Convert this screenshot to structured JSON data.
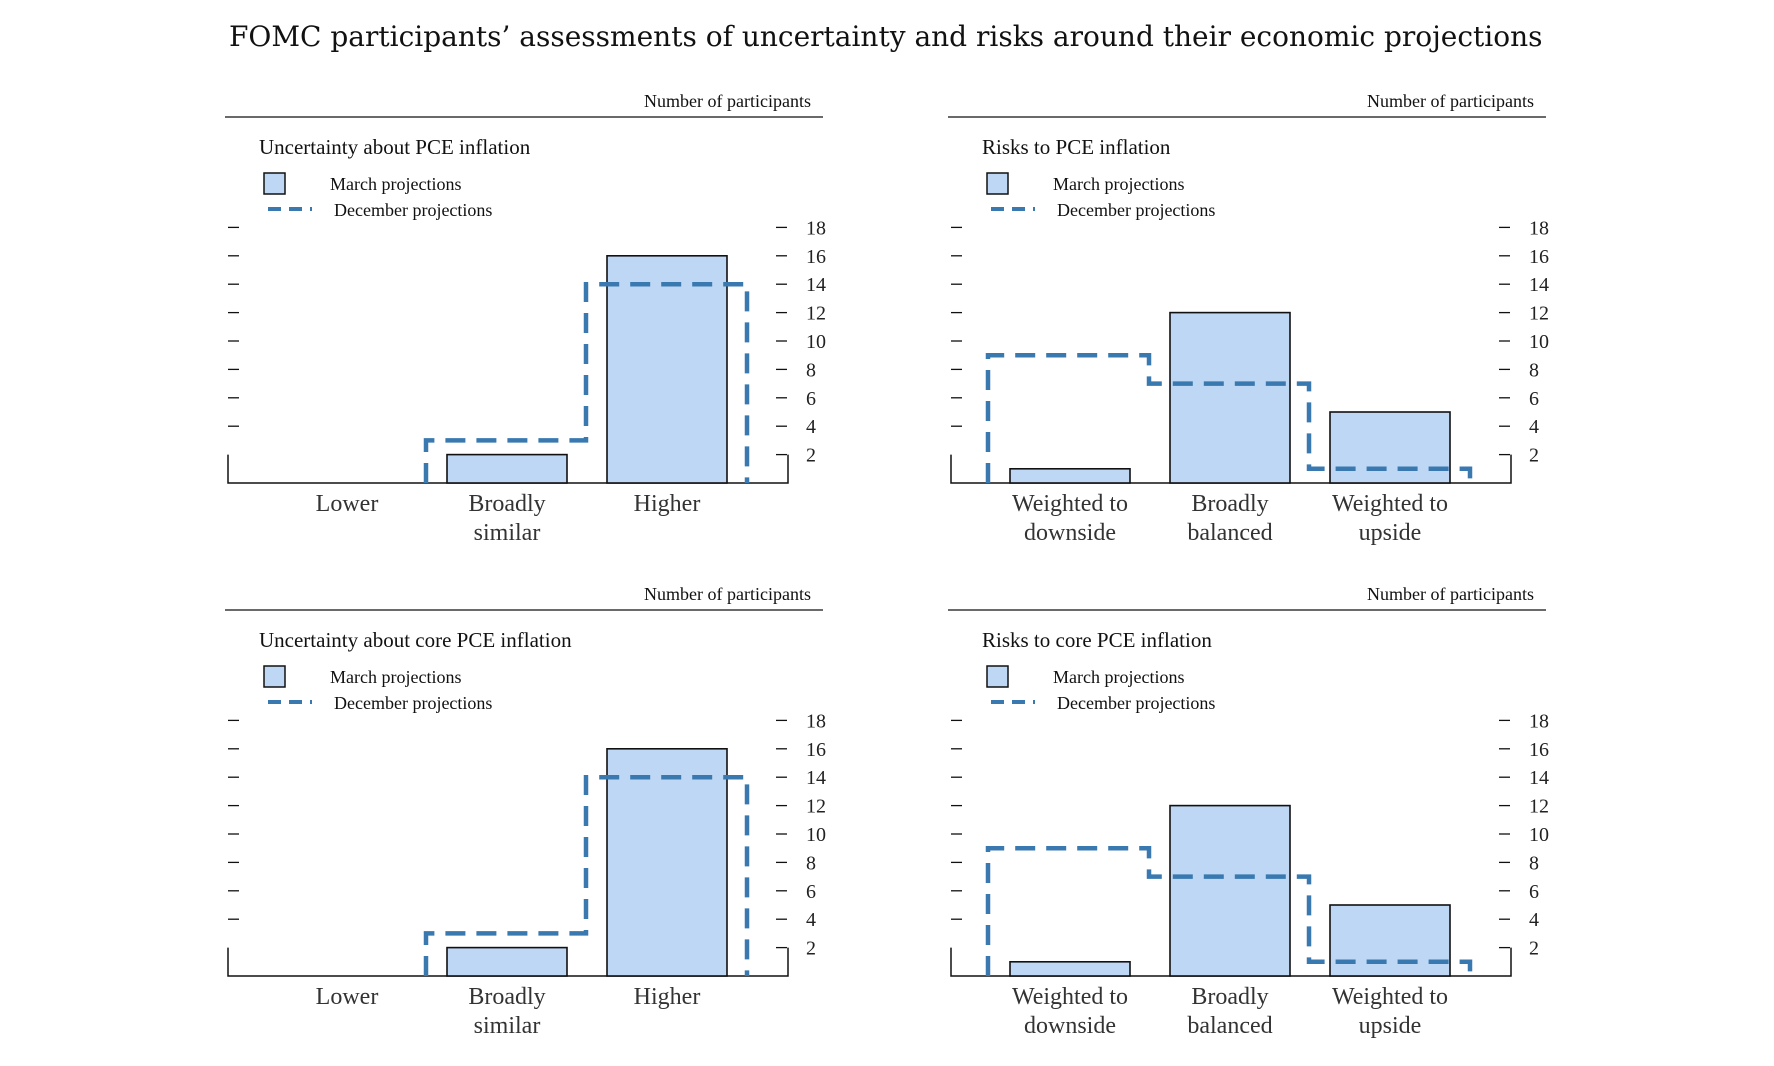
{
  "figure_title": "FOMC participants’ assessments of uncertainty and risks around their economic projections",
  "colors": {
    "bar_fill": "#bed7f4",
    "bar_stroke": "#111111",
    "dashed": "#3979b0",
    "axis": "#111111"
  },
  "chart_data": [
    {
      "type": "bar",
      "title": "Uncertainty about PCE inflation",
      "units_label": "Number of participants",
      "legend": [
        "March projections",
        "December projections"
      ],
      "categories": [
        [
          "Lower"
        ],
        [
          "Broadly",
          "similar"
        ],
        [
          "Higher"
        ]
      ],
      "series": [
        {
          "name": "March projections",
          "values": [
            0,
            2,
            16
          ]
        },
        {
          "name": "December projections",
          "values": [
            0,
            3,
            14
          ]
        }
      ],
      "ylim": [
        0,
        18
      ],
      "yticks": [
        2,
        4,
        6,
        8,
        10,
        12,
        14,
        16,
        18
      ]
    },
    {
      "type": "bar",
      "title": "Risks to PCE inflation",
      "units_label": "Number of participants",
      "legend": [
        "March projections",
        "December projections"
      ],
      "categories": [
        [
          "Weighted to",
          "downside"
        ],
        [
          "Broadly",
          "balanced"
        ],
        [
          "Weighted to",
          "upside"
        ]
      ],
      "series": [
        {
          "name": "March projections",
          "values": [
            1,
            12,
            5
          ]
        },
        {
          "name": "December projections",
          "values": [
            9,
            7,
            1
          ]
        }
      ],
      "ylim": [
        0,
        18
      ],
      "yticks": [
        2,
        4,
        6,
        8,
        10,
        12,
        14,
        16,
        18
      ]
    },
    {
      "type": "bar",
      "title": "Uncertainty about core PCE inflation",
      "units_label": "Number of participants",
      "legend": [
        "March projections",
        "December projections"
      ],
      "categories": [
        [
          "Lower"
        ],
        [
          "Broadly",
          "similar"
        ],
        [
          "Higher"
        ]
      ],
      "series": [
        {
          "name": "March projections",
          "values": [
            0,
            2,
            16
          ]
        },
        {
          "name": "December projections",
          "values": [
            0,
            3,
            14
          ]
        }
      ],
      "ylim": [
        0,
        18
      ],
      "yticks": [
        2,
        4,
        6,
        8,
        10,
        12,
        14,
        16,
        18
      ]
    },
    {
      "type": "bar",
      "title": "Risks to core PCE inflation",
      "units_label": "Number of participants",
      "legend": [
        "March projections",
        "December projections"
      ],
      "categories": [
        [
          "Weighted to",
          "downside"
        ],
        [
          "Broadly",
          "balanced"
        ],
        [
          "Weighted to",
          "upside"
        ]
      ],
      "series": [
        {
          "name": "March projections",
          "values": [
            1,
            12,
            5
          ]
        },
        {
          "name": "December projections",
          "values": [
            9,
            7,
            1
          ]
        }
      ],
      "ylim": [
        0,
        18
      ],
      "yticks": [
        2,
        4,
        6,
        8,
        10,
        12,
        14,
        16,
        18
      ]
    }
  ]
}
